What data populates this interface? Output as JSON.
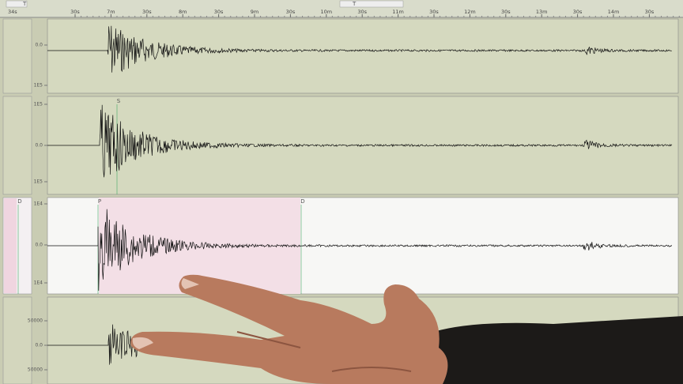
{
  "time_axis": {
    "start_label": "34s",
    "labels": [
      "30s",
      "7m",
      "30s",
      "8m",
      "30s",
      "9m",
      "30s",
      "10m",
      "30s",
      "11m",
      "30s",
      "12m",
      "30s",
      "13m",
      "30s",
      "14m",
      "30s"
    ]
  },
  "toolbar": {
    "items": [
      "T",
      "T"
    ]
  },
  "panels": [
    {
      "scale_labels": [
        "0.0",
        "1E5"
      ],
      "markers": []
    },
    {
      "scale_labels": [
        "1E5",
        "0.0",
        "1E5"
      ],
      "markers": [
        "S"
      ]
    },
    {
      "scale_labels": [
        "1E4",
        "0.0",
        "1E4"
      ],
      "markers": [
        "D",
        "P",
        "D"
      ]
    },
    {
      "scale_labels": [
        "50000",
        "0.0",
        "50000"
      ],
      "markers": []
    }
  ]
}
